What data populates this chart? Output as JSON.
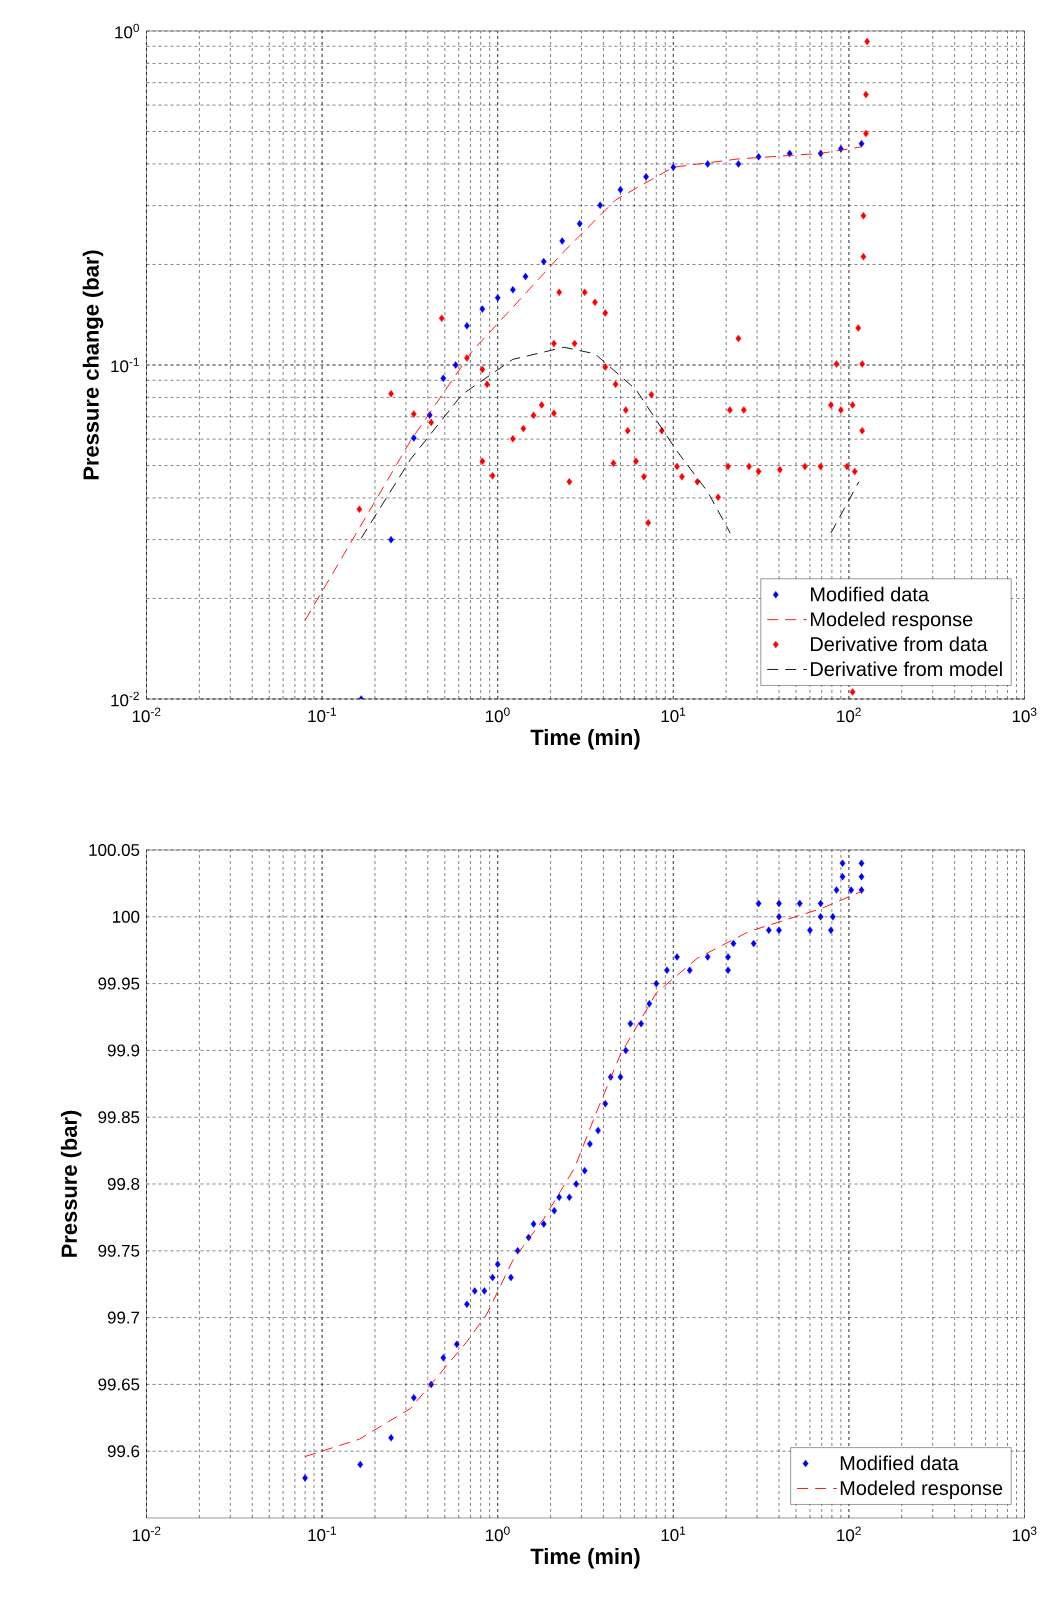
{
  "chart_data": [
    {
      "type": "scatter",
      "xlabel": "Time (min)",
      "ylabel": "Pressure change (bar)",
      "log": "xy",
      "grid": true,
      "legend": "bottom right",
      "xlim": [
        0.01,
        1000
      ],
      "ylim": [
        0.01,
        1
      ],
      "xticks": [
        {
          "value": 0.01,
          "label": "10$^{-2}$"
        },
        {
          "value": 0.1,
          "label": "10$^{-1}$"
        },
        {
          "value": 1,
          "label": "10$^{0}$"
        },
        {
          "value": 10,
          "label": "10$^{1}$"
        },
        {
          "value": 100,
          "label": "10$^{2}$"
        },
        {
          "value": 1000,
          "label": "10$^{3}$"
        }
      ],
      "yticks": [
        {
          "value": 0.01,
          "label": "10$^{-2}$"
        },
        {
          "value": 0.1,
          "label": "10$^{-1}$"
        },
        {
          "value": 1,
          "label": "10$^{0}$"
        }
      ],
      "series": [
        {
          "name": "Modified data",
          "marker": "diamond",
          "color": "#0000ff",
          "x": [
            0.167,
            0.247,
            0.333,
            0.41,
            0.49,
            0.576,
            0.668,
            0.818,
            1.0,
            1.22,
            1.44,
            1.83,
            2.33,
            2.93,
            3.83,
            5.0,
            7.0,
            10,
            15.7,
            23.5,
            30.6,
            46,
            69,
            90,
            118
          ],
          "values": [
            0.01,
            0.03,
            0.0605,
            0.0708,
            0.0912,
            0.1,
            0.131,
            0.147,
            0.159,
            0.168,
            0.184,
            0.204,
            0.235,
            0.265,
            0.301,
            0.335,
            0.366,
            0.391,
            0.4,
            0.4,
            0.42,
            0.43,
            0.43,
            0.444,
            0.46
          ]
        },
        {
          "name": "Modeled response",
          "type": "line",
          "line_style": "dashed",
          "color": "#ff0000",
          "x": [
            0.08,
            0.163,
            0.319,
            0.715,
            1.22,
            2.39,
            4.69,
            10,
            23.5,
            69,
            118
          ],
          "values": [
            0.0172,
            0.0325,
            0.0593,
            0.11,
            0.149,
            0.219,
            0.312,
            0.391,
            0.414,
            0.43,
            0.45
          ]
        },
        {
          "name": "Derivative from data",
          "marker": "diamond",
          "color": "#ff0000",
          "x": [
            0.163,
            0.247,
            0.333,
            0.418,
            0.48,
            0.668,
            0.818,
            0.87,
            0.818,
            0.935,
            1.22,
            1.4,
            1.6,
            1.78,
            2.09,
            2.09,
            2.24,
            2.56,
            2.74,
            3.13,
            3.58,
            4.1,
            4.1,
            4.69,
            5.36,
            4.56,
            5.5,
            6.13,
            6.8,
            7.2,
            7.5,
            8.6,
            10.5,
            11.2,
            13.7,
            18.0,
            20.5,
            21,
            23.5,
            25.2,
            27.0,
            30.6,
            40.4,
            56.2,
            69,
            79,
            85,
            90,
            97.5,
            105,
            108,
            113,
            119,
            119,
            121,
            121,
            125,
            125,
            127,
            105
          ],
          "values": [
            0.037,
            0.082,
            0.0713,
            0.0673,
            0.138,
            0.105,
            0.097,
            0.0875,
            0.0515,
            0.0466,
            0.0601,
            0.0645,
            0.0707,
            0.0759,
            0.0717,
            0.116,
            0.165,
            0.0447,
            0.116,
            0.165,
            0.154,
            0.143,
            0.0986,
            0.0875,
            0.0733,
            0.0508,
            0.0636,
            0.0515,
            0.0463,
            0.0337,
            0.0815,
            0.0636,
            0.0497,
            0.0463,
            0.0447,
            0.0402,
            0.0497,
            0.0733,
            0.12,
            0.0733,
            0.0497,
            0.048,
            0.0486,
            0.0497,
            0.0497,
            0.0759,
            0.1007,
            0.0733,
            0.0497,
            0.0759,
            0.048,
            0.129,
            0.1007,
            0.0636,
            0.211,
            0.28,
            0.493,
            0.645,
            0.93,
            0.0105
          ]
        },
        {
          "name": "Derivative from model",
          "type": "line",
          "line_style": "dashed",
          "color": "#000000",
          "x": [
            0.167,
            0.319,
            0.625,
            1.22,
            2.39,
            3.58,
            6.13,
            10.5,
            15.7,
            21.1,
            40,
            79,
            114
          ],
          "values": [
            0.0303,
            0.0522,
            0.0815,
            0.104,
            0.113,
            0.108,
            0.0844,
            0.0552,
            0.0417,
            0.0314,
            null,
            0.0314,
            0.0447
          ]
        }
      ]
    },
    {
      "type": "scatter",
      "xlabel": "Time (min)",
      "ylabel": "Pressure (bar)",
      "log": "x",
      "grid": true,
      "legend": "bottom right",
      "xlim": [
        0.01,
        1000
      ],
      "ylim": [
        99.55,
        100.05
      ],
      "xticks": [
        {
          "value": 0.01,
          "label": "10$^{-2}$"
        },
        {
          "value": 0.1,
          "label": "10$^{-1}$"
        },
        {
          "value": 1,
          "label": "10$^{0}$"
        },
        {
          "value": 10,
          "label": "10$^{1}$"
        },
        {
          "value": 100,
          "label": "10$^{2}$"
        },
        {
          "value": 1000,
          "label": "10$^{3}$"
        }
      ],
      "yticks": [
        99.6,
        99.65,
        99.7,
        99.75,
        99.8,
        99.85,
        99.9,
        99.95,
        100,
        100.05
      ],
      "series": [
        {
          "name": "Modified data",
          "marker": "diamond",
          "color": "#0000ff",
          "x": [
            0.08,
            0.165,
            0.247,
            0.333,
            0.418,
            0.49,
            0.585,
            0.668,
            0.74,
            0.84,
            0.935,
            1.0,
            1.19,
            1.3,
            1.5,
            1.6,
            1.83,
            2.1,
            2.24,
            2.56,
            2.8,
            3.13,
            3.35,
            3.73,
            4.1,
            4.4,
            5.0,
            5.36,
            5.7,
            6.56,
            7.3,
            8.0,
            9.2,
            10.5,
            12.4,
            15.7,
            20.5,
            20.5,
            22,
            28.7,
            35,
            30.6,
            40,
            52.5,
            69,
            40,
            60,
            79,
            40,
            69,
            81,
            85,
            103,
            118,
            92,
            118,
            92,
            118
          ],
          "values": [
            99.58,
            99.59,
            99.61,
            99.64,
            99.65,
            99.67,
            99.68,
            99.71,
            99.72,
            99.72,
            99.73,
            99.74,
            99.73,
            99.75,
            99.76,
            99.77,
            99.77,
            99.78,
            99.79,
            99.79,
            99.8,
            99.81,
            99.83,
            99.84,
            99.86,
            99.88,
            99.88,
            99.9,
            99.92,
            99.92,
            99.935,
            99.95,
            99.96,
            99.97,
            99.96,
            99.97,
            99.97,
            99.96,
            99.98,
            99.98,
            99.99,
            100.01,
            100.01,
            100.01,
            100.01,
            99.99,
            99.99,
            99.99,
            100.0,
            100.0,
            100.0,
            100.02,
            100.02,
            100.02,
            100.03,
            100.03,
            100.04,
            100.04
          ]
        },
        {
          "name": "Modeled response",
          "type": "line",
          "line_style": "dashed",
          "color": "#ff0000",
          "x": [
            0.08,
            0.163,
            0.319,
            0.668,
            0.87,
            1.22,
            1.83,
            2.74,
            3.58,
            5.0,
            8.0,
            13.7,
            27,
            69,
            118
          ],
          "values": [
            99.596,
            99.609,
            99.632,
            99.682,
            99.703,
            99.743,
            99.774,
            99.812,
            99.851,
            99.897,
            99.943,
            99.969,
            99.989,
            100.006,
            100.019
          ]
        }
      ]
    }
  ]
}
